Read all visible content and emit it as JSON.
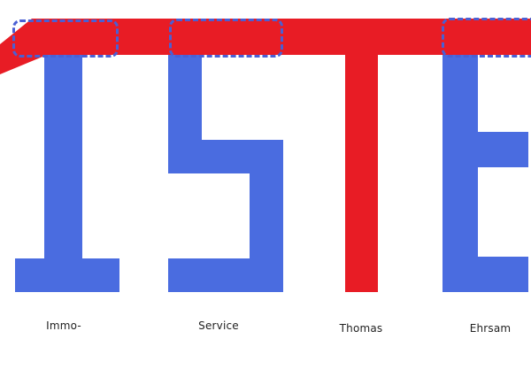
{
  "canvas": {
    "logo_text": "ISTE",
    "background": "#ffffff",
    "colors": {
      "red": "#e81c25",
      "blue": "#4a6ce0",
      "selection": "#4a5fd4",
      "label": "#222222"
    },
    "letters": [
      {
        "char": "I",
        "color": "blue",
        "label": "Immo-"
      },
      {
        "char": "S",
        "color": "blue",
        "label": "Service"
      },
      {
        "char": "T",
        "color": "red",
        "label": "Thomas"
      },
      {
        "char": "E",
        "color": "blue",
        "label": "Ehrsam"
      }
    ],
    "selection_boxes": [
      {
        "target": "bar-segment-over-I"
      },
      {
        "target": "bar-segment-over-S"
      },
      {
        "target": "bar-segment-over-E"
      }
    ]
  }
}
